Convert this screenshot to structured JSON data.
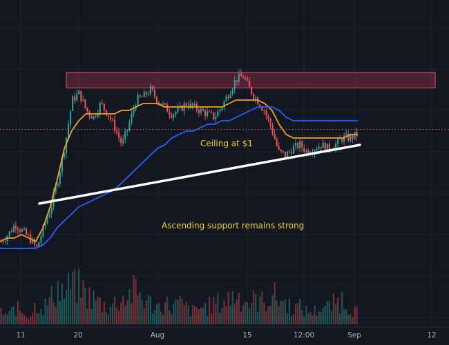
{
  "chart_data": {
    "type": "candlestick",
    "x_tick_labels": [
      "11",
      "20",
      "Aug",
      "15",
      "12:00",
      "Sep",
      "12"
    ],
    "price_range": [
      0.28,
      1.22
    ],
    "resistance_zone": {
      "from_price": 0.965,
      "to_price": 1.01,
      "label": "Ceiling at $1"
    },
    "support_line": {
      "start_price": 0.63,
      "end_price": 0.8,
      "label": "Ascending support remains strong"
    },
    "last_price_level": 0.845,
    "price_samples": [
      0.52,
      0.54,
      0.57,
      0.55,
      0.53,
      0.5,
      0.56,
      0.62,
      0.7,
      0.8,
      0.93,
      0.95,
      0.9,
      0.88,
      0.92,
      0.89,
      0.85,
      0.8,
      0.86,
      0.93,
      0.94,
      0.96,
      0.93,
      0.91,
      0.89,
      0.9,
      0.92,
      0.91,
      0.9,
      0.89,
      0.88,
      0.91,
      0.95,
      0.99,
      1.0,
      0.96,
      0.93,
      0.9,
      0.85,
      0.78,
      0.77,
      0.79,
      0.8,
      0.78,
      0.79,
      0.8,
      0.79,
      0.8,
      0.82,
      0.82,
      0.83
    ],
    "series": [
      {
        "name": "",
        "color": "#f7a21b",
        "values": [
          0.52,
          0.53,
          0.53,
          0.54,
          0.53,
          0.52,
          0.56,
          0.62,
          0.7,
          0.79,
          0.84,
          0.87,
          0.89,
          0.89,
          0.89,
          0.89,
          0.89,
          0.9,
          0.9,
          0.91,
          0.92,
          0.92,
          0.92,
          0.91,
          0.91,
          0.91,
          0.91,
          0.91,
          0.91,
          0.91,
          0.91,
          0.91,
          0.92,
          0.93,
          0.93,
          0.93,
          0.93,
          0.92,
          0.9,
          0.86,
          0.83,
          0.82,
          0.82,
          0.82,
          0.82,
          0.82,
          0.82,
          0.82,
          0.82,
          0.83,
          0.83
        ]
      },
      {
        "name": "",
        "color": "#2962ff",
        "values": [
          0.5,
          0.5,
          0.5,
          0.5,
          0.5,
          0.5,
          0.51,
          0.53,
          0.56,
          0.58,
          0.6,
          0.62,
          0.63,
          0.64,
          0.65,
          0.66,
          0.67,
          0.69,
          0.71,
          0.73,
          0.75,
          0.77,
          0.79,
          0.8,
          0.82,
          0.83,
          0.84,
          0.84,
          0.85,
          0.86,
          0.86,
          0.87,
          0.87,
          0.88,
          0.89,
          0.9,
          0.91,
          0.91,
          0.91,
          0.9,
          0.88,
          0.87,
          0.87,
          0.87,
          0.87,
          0.87,
          0.87,
          0.87,
          0.87,
          0.87,
          0.87
        ]
      }
    ],
    "volume": [
      3,
      2,
      4,
      3,
      2,
      5,
      4,
      6,
      9,
      7,
      10,
      9,
      7,
      6,
      5,
      4,
      5,
      6,
      7,
      8,
      6,
      5,
      4,
      5,
      4,
      5,
      4,
      3,
      4,
      4,
      5,
      5,
      6,
      7,
      6,
      5,
      6,
      5,
      7,
      6,
      5,
      4,
      4,
      3,
      3,
      4,
      4,
      5,
      6,
      4,
      3
    ],
    "colors": {
      "up": "#26a69a",
      "down": "#ef5350",
      "support": "#ffffff",
      "zone_fill": "#7c2b3f",
      "zone_stroke": "#e35364",
      "annotation": "#f0d03a",
      "background": "#131722",
      "grid": "#1f2330"
    }
  }
}
